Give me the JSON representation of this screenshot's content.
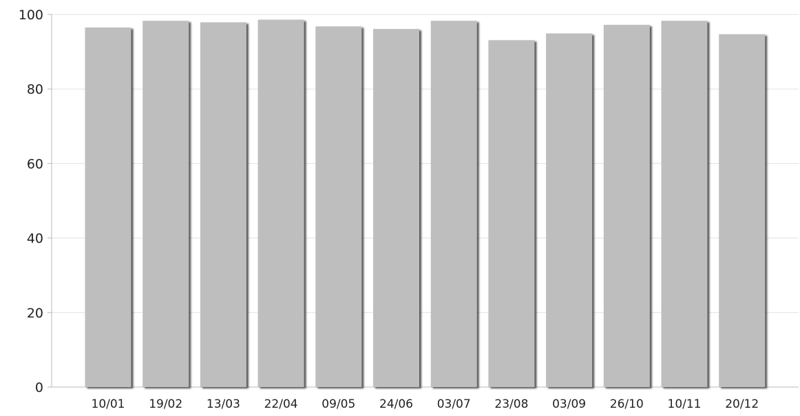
{
  "chart_data": {
    "type": "bar",
    "categories": [
      "10/01",
      "19/02",
      "13/03",
      "22/04",
      "09/05",
      "24/06",
      "03/07",
      "23/08",
      "03/09",
      "26/10",
      "10/11",
      "20/12"
    ],
    "values": [
      96.5,
      98.3,
      97.9,
      98.6,
      96.8,
      96.1,
      98.3,
      93.1,
      94.9,
      97.2,
      98.3,
      94.7
    ],
    "ylim": [
      0,
      100
    ],
    "yticks": [
      0,
      20,
      40,
      60,
      80,
      100
    ],
    "grid": true,
    "legend": "none",
    "colors": {
      "bar": "#bebebe",
      "bar_shadow": "#5a5a5a",
      "grid": "#e2e2e2"
    }
  }
}
